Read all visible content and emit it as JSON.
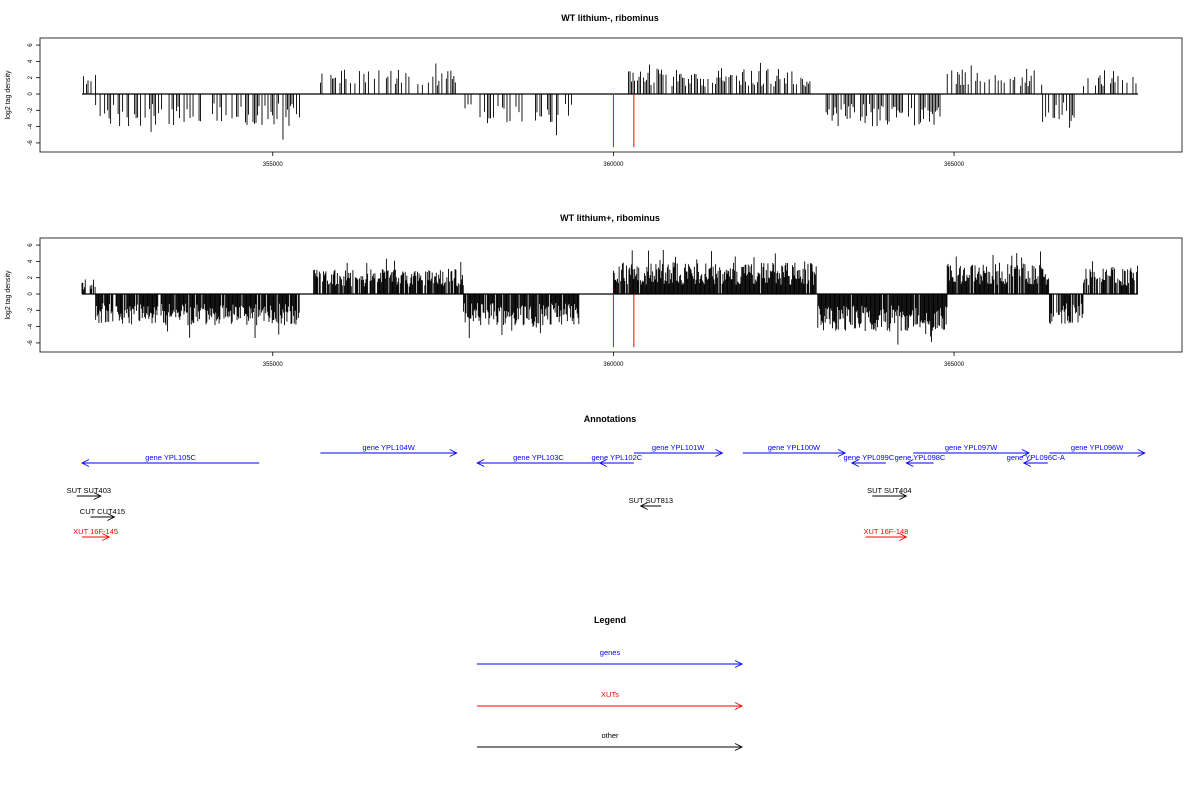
{
  "chart_data": [
    {
      "type": "bar",
      "title": "WT lithium-, ribominus",
      "xlabel": "",
      "ylabel": "log2 tag density",
      "xlim": [
        352000,
        367800
      ],
      "ylim": [
        -6.5,
        6.5
      ],
      "yticks": [
        6,
        4,
        2,
        0,
        -2,
        -4,
        -6
      ],
      "xticks": [
        355000,
        360000,
        365000
      ],
      "grid": false,
      "density": "sparse",
      "segments": [
        {
          "start": 352200,
          "end": 352400,
          "sign": 1,
          "amp": 2.2,
          "p": 0.6
        },
        {
          "start": 352400,
          "end": 355400,
          "sign": -1,
          "amp": 3.3,
          "p": 0.55
        },
        {
          "start": 355700,
          "end": 357700,
          "sign": 1,
          "amp": 2.5,
          "p": 0.4
        },
        {
          "start": 357800,
          "end": 359400,
          "sign": -1,
          "amp": 3.0,
          "p": 0.45
        },
        {
          "start": 360200,
          "end": 362900,
          "sign": 1,
          "amp": 2.6,
          "p": 0.7
        },
        {
          "start": 363100,
          "end": 364800,
          "sign": -1,
          "amp": 3.3,
          "p": 0.7
        },
        {
          "start": 364900,
          "end": 366300,
          "sign": 1,
          "amp": 2.6,
          "p": 0.5
        },
        {
          "start": 366300,
          "end": 366800,
          "sign": -1,
          "amp": 3.0,
          "p": 0.6
        },
        {
          "start": 366900,
          "end": 367700,
          "sign": 1,
          "amp": 2.5,
          "p": 0.4
        }
      ],
      "markers": [
        {
          "x": 360000,
          "from": 0,
          "to": -6.5,
          "color": "#ff0000"
        },
        {
          "x": 360300,
          "from": 0,
          "to": -6.5,
          "color": "#ff0000"
        }
      ]
    },
    {
      "type": "bar",
      "title": "WT lithium+, ribominus",
      "xlabel": "",
      "ylabel": "log2 tag density",
      "xlim": [
        352000,
        367800
      ],
      "ylim": [
        -6.5,
        6.5
      ],
      "yticks": [
        6,
        4,
        2,
        0,
        -2,
        -4,
        -6
      ],
      "xticks": [
        355000,
        360000,
        365000
      ],
      "grid": false,
      "density": "dense",
      "segments": [
        {
          "start": 352200,
          "end": 352400,
          "sign": 1,
          "amp": 1.5,
          "p": 0.5
        },
        {
          "start": 352400,
          "end": 355400,
          "sign": -1,
          "amp": 3.2,
          "p": 0.9
        },
        {
          "start": 355600,
          "end": 357800,
          "sign": 1,
          "amp": 2.6,
          "p": 0.85
        },
        {
          "start": 357800,
          "end": 359500,
          "sign": -1,
          "amp": 3.2,
          "p": 0.9
        },
        {
          "start": 360000,
          "end": 363000,
          "sign": 1,
          "amp": 3.2,
          "p": 0.95
        },
        {
          "start": 363000,
          "end": 364900,
          "sign": -1,
          "amp": 3.8,
          "p": 0.95
        },
        {
          "start": 364900,
          "end": 366400,
          "sign": 1,
          "amp": 3.2,
          "p": 0.9
        },
        {
          "start": 366400,
          "end": 366900,
          "sign": -1,
          "amp": 3.2,
          "p": 0.8
        },
        {
          "start": 366900,
          "end": 367700,
          "sign": 1,
          "amp": 2.8,
          "p": 0.8
        }
      ],
      "markers": [
        {
          "x": 360000,
          "from": 0,
          "to": -6.5,
          "color": "#ff0000"
        },
        {
          "x": 360300,
          "from": 0,
          "to": -6.5,
          "color": "#ff0000"
        }
      ]
    }
  ],
  "annotations": {
    "title": "Annotations",
    "xlim": [
      352000,
      367800
    ],
    "rows": [
      "upper",
      "lower",
      "other1",
      "other2",
      "xut"
    ],
    "features": [
      {
        "label": "gene YPL105C",
        "start": 352200,
        "end": 354800,
        "dir": "left",
        "color": "#0000ff",
        "row": "lower"
      },
      {
        "label": "gene YPL104W",
        "start": 355700,
        "end": 357700,
        "dir": "right",
        "color": "#0000ff",
        "row": "upper"
      },
      {
        "label": "gene YPL103C",
        "start": 358000,
        "end": 359800,
        "dir": "left",
        "color": "#0000ff",
        "row": "lower"
      },
      {
        "label": "gene YPL102C",
        "start": 359800,
        "end": 360300,
        "dir": "left",
        "color": "#0000ff",
        "row": "lower"
      },
      {
        "label": "gene YPL101W",
        "start": 360300,
        "end": 361600,
        "dir": "right",
        "color": "#0000ff",
        "row": "upper"
      },
      {
        "label": "gene YPL100W",
        "start": 361900,
        "end": 363400,
        "dir": "right",
        "color": "#0000ff",
        "row": "upper"
      },
      {
        "label": "gene YPL099C",
        "start": 363500,
        "end": 364000,
        "dir": "left",
        "color": "#0000ff",
        "row": "lower"
      },
      {
        "label": "gene YPL098C",
        "start": 364300,
        "end": 364700,
        "dir": "left",
        "color": "#0000ff",
        "row": "lower"
      },
      {
        "label": "gene YPL097W",
        "start": 364400,
        "end": 366100,
        "dir": "right",
        "color": "#0000ff",
        "row": "upper"
      },
      {
        "label": "gene YPL096C-A",
        "start": 366100,
        "end": 366300,
        "dir": "left",
        "color": "#0000ff",
        "row": "lower"
      },
      {
        "label": "gene YPL096W",
        "start": 366400,
        "end": 367800,
        "dir": "right",
        "color": "#0000ff",
        "row": "upper"
      },
      {
        "label": "SUT SUT403",
        "start": 352200,
        "end": 352400,
        "dir": "right",
        "color": "#000000",
        "row": "other1"
      },
      {
        "label": "CUT CUT415",
        "start": 352400,
        "end": 352600,
        "dir": "right",
        "color": "#000000",
        "row": "other2"
      },
      {
        "label": "SUT SUT813",
        "start": 360400,
        "end": 360700,
        "dir": "left",
        "color": "#000000",
        "row": "other1b"
      },
      {
        "label": "SUT SUT404",
        "start": 363800,
        "end": 364300,
        "dir": "right",
        "color": "#000000",
        "row": "other1"
      },
      {
        "label": "XUT 16F-145",
        "start": 352200,
        "end": 352600,
        "dir": "right",
        "color": "#ff0000",
        "row": "xut"
      },
      {
        "label": "XUT 16F-148",
        "start": 363700,
        "end": 364300,
        "dir": "right",
        "color": "#ff0000",
        "row": "xut"
      }
    ]
  },
  "legend": {
    "title": "Legend",
    "items": [
      {
        "label": "genes",
        "color": "#0000ff"
      },
      {
        "label": "XUTs",
        "color": "#ff0000"
      },
      {
        "label": "other",
        "color": "#000000"
      }
    ]
  }
}
